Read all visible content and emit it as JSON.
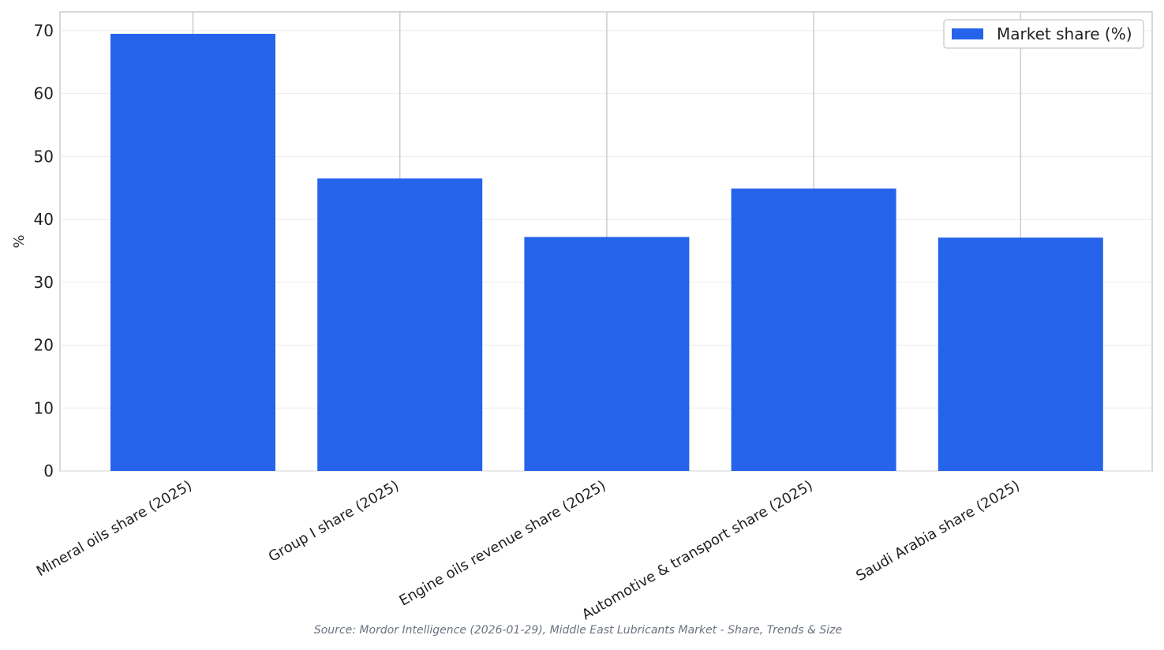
{
  "chart_data": {
    "type": "bar",
    "categories": [
      "Mineral oils share (2025)",
      "Group I share (2025)",
      "Engine oils revenue share (2025)",
      "Automotive & transport share (2025)",
      "Saudi Arabia share (2025)"
    ],
    "series": [
      {
        "name": "Market share (%)",
        "values": [
          69.5,
          46.5,
          37.2,
          44.9,
          37.1
        ],
        "color": "#2563eb"
      }
    ],
    "ylabel": "%",
    "xlabel": "",
    "ylim": [
      0,
      73
    ],
    "yticks": [
      0,
      10,
      20,
      30,
      40,
      50,
      60,
      70
    ],
    "grid": true,
    "legend_position": "top-right"
  },
  "source_note": "Source: Mordor Intelligence (2026-01-29), Middle East Lubricants Market - Share, Trends & Size"
}
